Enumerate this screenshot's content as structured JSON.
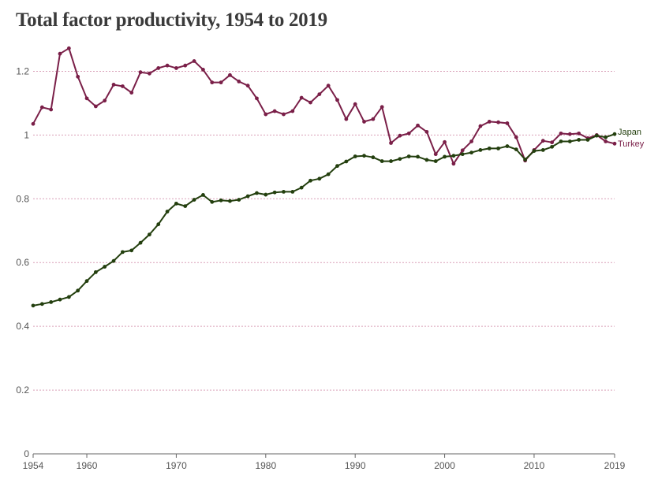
{
  "title": "Total factor productivity, 1954 to 2019",
  "colors": {
    "japan": "#233f0e",
    "turkey": "#7a1f48",
    "grid": "#d9a0b8",
    "axis": "#666666"
  },
  "chart_data": {
    "type": "line",
    "title": "Total factor productivity, 1954 to 2019",
    "xlabel": "",
    "ylabel": "",
    "xlim": [
      1954,
      2019
    ],
    "ylim": [
      0,
      1.3
    ],
    "x_ticks": [
      1954,
      1960,
      1970,
      1980,
      1990,
      2000,
      2010,
      2019
    ],
    "y_ticks": [
      0,
      0.2,
      0.4,
      0.6,
      0.8,
      1,
      1.2
    ],
    "y_tick_labels": [
      "0",
      "0.2",
      "0.4",
      "0.6",
      "0.8",
      "1",
      "1.2"
    ],
    "grid": true,
    "x": [
      1954,
      1955,
      1956,
      1957,
      1958,
      1959,
      1960,
      1961,
      1962,
      1963,
      1964,
      1965,
      1966,
      1967,
      1968,
      1969,
      1970,
      1971,
      1972,
      1973,
      1974,
      1975,
      1976,
      1977,
      1978,
      1979,
      1980,
      1981,
      1982,
      1983,
      1984,
      1985,
      1986,
      1987,
      1988,
      1989,
      1990,
      1991,
      1992,
      1993,
      1994,
      1995,
      1996,
      1997,
      1998,
      1999,
      2000,
      2001,
      2002,
      2003,
      2004,
      2005,
      2006,
      2007,
      2008,
      2009,
      2010,
      2011,
      2012,
      2013,
      2014,
      2015,
      2016,
      2017,
      2018,
      2019
    ],
    "series": [
      {
        "name": "Japan",
        "values": [
          0.465,
          0.47,
          0.476,
          0.484,
          0.492,
          0.512,
          0.542,
          0.57,
          0.587,
          0.605,
          0.633,
          0.638,
          0.662,
          0.688,
          0.72,
          0.76,
          0.785,
          0.777,
          0.797,
          0.812,
          0.79,
          0.795,
          0.793,
          0.797,
          0.808,
          0.818,
          0.813,
          0.82,
          0.822,
          0.822,
          0.835,
          0.857,
          0.863,
          0.877,
          0.903,
          0.917,
          0.933,
          0.935,
          0.93,
          0.918,
          0.918,
          0.925,
          0.933,
          0.932,
          0.922,
          0.918,
          0.932,
          0.935,
          0.94,
          0.945,
          0.953,
          0.958,
          0.958,
          0.965,
          0.955,
          0.923,
          0.95,
          0.953,
          0.963,
          0.98,
          0.98,
          0.985,
          0.985,
          0.998,
          0.993,
          1.003
        ]
      },
      {
        "name": "Turkey",
        "values": [
          1.035,
          1.087,
          1.08,
          1.255,
          1.272,
          1.183,
          1.115,
          1.09,
          1.108,
          1.158,
          1.153,
          1.133,
          1.197,
          1.193,
          1.21,
          1.218,
          1.21,
          1.218,
          1.232,
          1.205,
          1.165,
          1.165,
          1.188,
          1.168,
          1.155,
          1.115,
          1.065,
          1.075,
          1.065,
          1.075,
          1.117,
          1.102,
          1.128,
          1.155,
          1.11,
          1.05,
          1.097,
          1.042,
          1.05,
          1.088,
          0.975,
          0.998,
          1.005,
          1.03,
          1.01,
          0.94,
          0.978,
          0.91,
          0.952,
          0.98,
          1.028,
          1.042,
          1.04,
          1.037,
          0.993,
          0.92,
          0.953,
          0.982,
          0.977,
          1.005,
          1.003,
          1.005,
          0.99,
          1.0,
          0.98,
          0.973
        ]
      }
    ]
  }
}
